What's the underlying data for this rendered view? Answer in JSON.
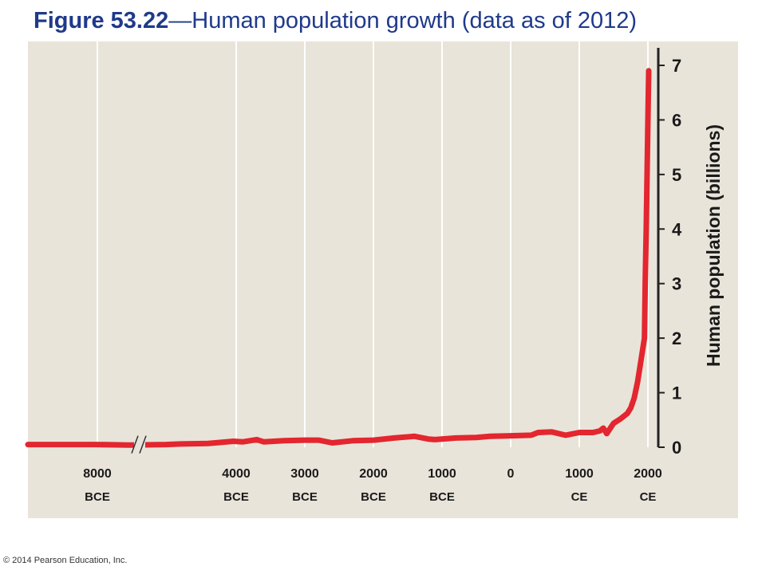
{
  "figure": {
    "label": "Figure 53.22",
    "title_rest": "—Human population growth (data as of 2012)"
  },
  "colors": {
    "title": "#1f3a8a",
    "panel_background": "#e9e4da",
    "plot_background": "#e8e4d9",
    "line": "#e3262f",
    "axis": "#222222"
  },
  "copyright": "© 2014 Pearson Education, Inc.",
  "chart_data": {
    "type": "line",
    "title": "Human population growth (data as of 2012)",
    "ylabel": "Human population (billions)",
    "xlabel": "",
    "ylim": [
      0,
      7
    ],
    "y_axis_side": "right",
    "grid": "vertical lines at x ticks",
    "axis_break": "between 8000 BCE and 4000 BCE",
    "x_ticks": [
      {
        "x": -8000,
        "label": "8000",
        "era": "BCE"
      },
      {
        "x": -4000,
        "label": "4000",
        "era": "BCE"
      },
      {
        "x": -3000,
        "label": "3000",
        "era": "BCE"
      },
      {
        "x": -2000,
        "label": "2000",
        "era": "BCE"
      },
      {
        "x": -1000,
        "label": "1000",
        "era": "BCE"
      },
      {
        "x": 0,
        "label": "0",
        "era": ""
      },
      {
        "x": 1000,
        "label": "1000",
        "era": "CE"
      },
      {
        "x": 2000,
        "label": "2000",
        "era": "CE"
      }
    ],
    "y_ticks": [
      0,
      1,
      2,
      3,
      4,
      5,
      6,
      7
    ],
    "series": [
      {
        "x": [
          -9000,
          -8000,
          -7500,
          -6500,
          -6000,
          -5000,
          -4500,
          -4100,
          -3900,
          -3700,
          -3600,
          -3300,
          -3000,
          -2800,
          -2600,
          -2300,
          -2000,
          -1700,
          -1400,
          -1200,
          -1100,
          -800,
          -500,
          -300,
          0,
          300,
          400,
          600,
          800,
          1000,
          1200,
          1300,
          1350,
          1400,
          1500,
          1600,
          1700,
          1750,
          1800,
          1850,
          1900,
          1950,
          1960,
          1975,
          2000,
          2012
        ],
        "y": [
          0.05,
          0.05,
          0.04,
          0.05,
          0.06,
          0.07,
          0.09,
          0.11,
          0.1,
          0.14,
          0.1,
          0.12,
          0.13,
          0.13,
          0.08,
          0.12,
          0.13,
          0.17,
          0.2,
          0.15,
          0.14,
          0.17,
          0.18,
          0.2,
          0.21,
          0.22,
          0.27,
          0.28,
          0.22,
          0.27,
          0.27,
          0.3,
          0.35,
          0.25,
          0.44,
          0.52,
          0.62,
          0.72,
          0.9,
          1.2,
          1.6,
          2.0,
          3.0,
          4.0,
          6.0,
          6.9
        ]
      }
    ]
  }
}
